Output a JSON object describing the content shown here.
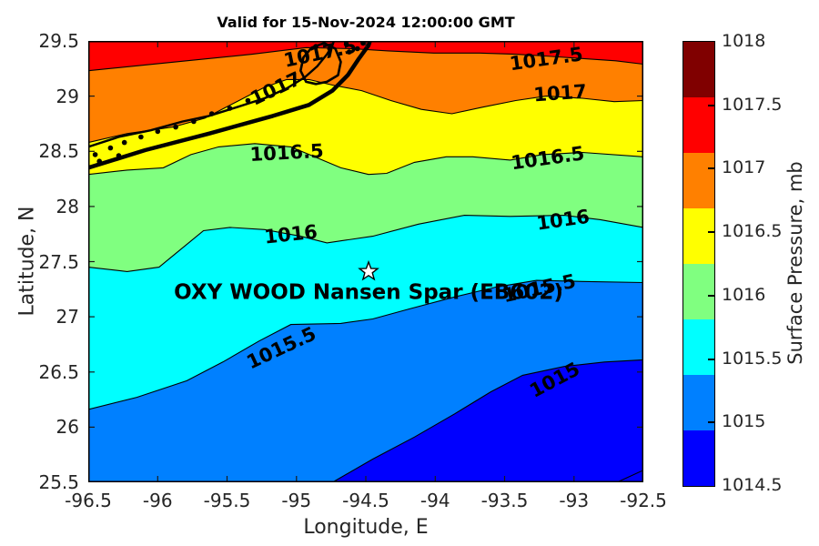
{
  "title": "Valid for 15-Nov-2024 12:00:00 GMT",
  "axes": {
    "xlabel": "Longitude, E",
    "ylabel": "Latitude, N",
    "xticks": [
      "-96.5",
      "-96",
      "-95.5",
      "-95",
      "-94.5",
      "-94",
      "-93.5",
      "-93",
      "-92.5"
    ],
    "yticks": [
      "29.5",
      "29",
      "28.5",
      "28",
      "27.5",
      "27",
      "26.5",
      "26",
      "25.5"
    ]
  },
  "colorbar": {
    "label": "Surface Pressure, mb",
    "ticks": [
      "1018",
      "1017.5",
      "1017",
      "1016.5",
      "1016",
      "1015.5",
      "1015",
      "1014.5"
    ],
    "band_colors_top_to_bottom": [
      "#800000",
      "#ff0000",
      "#ff8000",
      "#ffff00",
      "#80ff80",
      "#00ffff",
      "#0080ff",
      "#0000ff"
    ]
  },
  "chart_data": {
    "type": "heatmap",
    "subtype": "filled_contour_map",
    "title": "Valid for 15-Nov-2024 12:00:00 GMT",
    "xlabel": "Longitude, E",
    "ylabel": "Latitude, N",
    "xlim": [
      -96.5,
      -92.5
    ],
    "ylim": [
      25.5,
      29.5
    ],
    "xticks": [
      -96.5,
      -96,
      -95.5,
      -95,
      -94.5,
      -94,
      -93.5,
      -93,
      -92.5
    ],
    "yticks": [
      25.5,
      26,
      26.5,
      27,
      27.5,
      28,
      28.5,
      29,
      29.5
    ],
    "grid": false,
    "base_fill": "#0000ff",
    "colorbar": {
      "label": "Surface Pressure, mb",
      "min": 1014.5,
      "max": 1018,
      "tick_step": 0.5,
      "band_colors_low_to_high": [
        "#0000ff",
        "#0080ff",
        "#00ffff",
        "#80ff80",
        "#ffff00",
        "#ff8000",
        "#ff0000",
        "#800000"
      ]
    },
    "contour_levels_mb": [
      1014.5,
      1015,
      1015.5,
      1016,
      1016.5,
      1017,
      1017.5
    ],
    "contours": [
      {
        "level": 1015,
        "fill_above": "#0080ff",
        "points": [
          [
            -94.74,
            25.5
          ],
          [
            -94.45,
            25.71
          ],
          [
            -94.15,
            25.91
          ],
          [
            -93.86,
            26.12
          ],
          [
            -93.6,
            26.32
          ],
          [
            -93.37,
            26.47
          ],
          [
            -93.07,
            26.55
          ],
          [
            -92.78,
            26.59
          ],
          [
            -92.5,
            26.61
          ]
        ]
      },
      {
        "level": 1015.5,
        "fill_above": "#00ffff",
        "points": [
          [
            -96.5,
            26.16
          ],
          [
            -96.15,
            26.27
          ],
          [
            -95.79,
            26.42
          ],
          [
            -95.53,
            26.59
          ],
          [
            -95.27,
            26.78
          ],
          [
            -95.04,
            26.93
          ],
          [
            -94.68,
            26.94
          ],
          [
            -94.45,
            26.98
          ],
          [
            -94.19,
            27.07
          ],
          [
            -93.86,
            27.18
          ],
          [
            -93.56,
            27.27
          ],
          [
            -93.27,
            27.33
          ],
          [
            -92.94,
            27.32
          ],
          [
            -92.5,
            27.31
          ]
        ]
      },
      {
        "level": 1016,
        "fill_above": "#80ff80",
        "points": [
          [
            -96.5,
            27.45
          ],
          [
            -96.22,
            27.41
          ],
          [
            -95.99,
            27.45
          ],
          [
            -95.67,
            27.78
          ],
          [
            -95.48,
            27.81
          ],
          [
            -95.23,
            27.79
          ],
          [
            -94.97,
            27.73
          ],
          [
            -94.78,
            27.67
          ],
          [
            -94.45,
            27.73
          ],
          [
            -94.12,
            27.84
          ],
          [
            -93.79,
            27.92
          ],
          [
            -93.46,
            27.91
          ],
          [
            -93.07,
            27.92
          ],
          [
            -92.81,
            27.88
          ],
          [
            -92.5,
            27.81
          ]
        ]
      },
      {
        "level": 1016.5,
        "fill_above": "#ffff00",
        "points": [
          [
            -96.5,
            28.29
          ],
          [
            -96.22,
            28.33
          ],
          [
            -95.96,
            28.35
          ],
          [
            -95.76,
            28.47
          ],
          [
            -95.56,
            28.54
          ],
          [
            -95.3,
            28.57
          ],
          [
            -95.04,
            28.54
          ],
          [
            -94.87,
            28.45
          ],
          [
            -94.68,
            28.35
          ],
          [
            -94.48,
            28.29
          ],
          [
            -94.35,
            28.3
          ],
          [
            -94.15,
            28.4
          ],
          [
            -93.92,
            28.45
          ],
          [
            -93.73,
            28.45
          ],
          [
            -93.46,
            28.42
          ],
          [
            -93.23,
            28.47
          ],
          [
            -92.94,
            28.49
          ],
          [
            -92.5,
            28.45
          ]
        ]
      },
      {
        "level": 1017,
        "fill_above": "#ff8000",
        "points": [
          [
            -96.5,
            28.58
          ],
          [
            -96.22,
            28.66
          ],
          [
            -95.89,
            28.72
          ],
          [
            -95.66,
            28.8
          ],
          [
            -95.43,
            28.95
          ],
          [
            -95.23,
            29.08
          ],
          [
            -95.07,
            29.15
          ],
          [
            -94.91,
            29.15
          ],
          [
            -94.74,
            29.1
          ],
          [
            -94.53,
            29.05
          ],
          [
            -94.32,
            28.96
          ],
          [
            -94.1,
            28.88
          ],
          [
            -93.88,
            28.84
          ],
          [
            -93.66,
            28.9
          ],
          [
            -93.42,
            28.96
          ],
          [
            -93.2,
            29.0
          ],
          [
            -92.94,
            28.98
          ],
          [
            -92.71,
            28.95
          ],
          [
            -92.5,
            28.96
          ]
        ]
      },
      {
        "level": 1017.5,
        "fill_above": "#ff0000",
        "points": [
          [
            -96.5,
            29.23
          ],
          [
            -96.11,
            29.28
          ],
          [
            -95.71,
            29.33
          ],
          [
            -95.32,
            29.38
          ],
          [
            -94.93,
            29.44
          ],
          [
            -94.6,
            29.43
          ],
          [
            -94.34,
            29.41
          ],
          [
            -94.01,
            29.39
          ],
          [
            -93.68,
            29.39
          ],
          [
            -93.42,
            29.38
          ],
          [
            -93.16,
            29.36
          ],
          [
            -92.93,
            29.34
          ],
          [
            -92.7,
            29.32
          ],
          [
            -92.5,
            29.29
          ]
        ]
      }
    ],
    "extra_contour_segment": {
      "level": 1014.5,
      "points": [
        [
          -92.69,
          25.5
        ],
        [
          -92.5,
          25.61
        ]
      ]
    },
    "contour_labels": [
      {
        "text": "1017.5",
        "lon": -94.83,
        "lat": 29.39,
        "rot": -12
      },
      {
        "text": "1017.5",
        "lon": -93.2,
        "lat": 29.34,
        "rot": -8
      },
      {
        "text": "1017",
        "lon": -95.15,
        "lat": 29.07,
        "rot": -25
      },
      {
        "text": "1017",
        "lon": -93.1,
        "lat": 29.03,
        "rot": -4
      },
      {
        "text": "1016.5",
        "lon": -95.07,
        "lat": 28.49,
        "rot": -3
      },
      {
        "text": "1016.5",
        "lon": -93.19,
        "lat": 28.44,
        "rot": -8
      },
      {
        "text": "1016",
        "lon": -95.04,
        "lat": 27.75,
        "rot": -6
      },
      {
        "text": "1016",
        "lon": -93.08,
        "lat": 27.88,
        "rot": -8
      },
      {
        "text": "1015.5",
        "lon": -95.11,
        "lat": 26.72,
        "rot": -25
      },
      {
        "text": "1015.5",
        "lon": -93.25,
        "lat": 27.26,
        "rot": -12
      },
      {
        "text": "1015",
        "lon": -93.14,
        "lat": 26.43,
        "rot": -28
      }
    ],
    "station": {
      "label": "OXY WOOD Nansen Spar (EB602)",
      "lon": -94.48,
      "lat": 27.41,
      "marker": "pentagram",
      "marker_face": "#ffffff",
      "marker_edge": "#000000"
    },
    "coastline": {
      "color": "#000000",
      "barrier": [
        [
          -96.5,
          28.35
        ],
        [
          -96.09,
          28.51
        ],
        [
          -95.63,
          28.66
        ],
        [
          -95.17,
          28.82
        ],
        [
          -94.91,
          28.92
        ],
        [
          -94.74,
          29.05
        ],
        [
          -94.63,
          29.19
        ],
        [
          -94.55,
          29.34
        ],
        [
          -94.48,
          29.46
        ],
        [
          -94.47,
          29.5
        ]
      ],
      "mainland": [
        [
          -96.5,
          28.54
        ],
        [
          -96.28,
          28.63
        ],
        [
          -96.05,
          28.69
        ],
        [
          -95.82,
          28.77
        ],
        [
          -95.63,
          28.82
        ],
        [
          -95.43,
          28.9
        ],
        [
          -95.23,
          28.98
        ],
        [
          -95.07,
          29.07
        ],
        [
          -94.94,
          29.17
        ],
        [
          -94.85,
          29.27
        ],
        [
          -94.78,
          29.38
        ],
        [
          -94.74,
          29.46
        ],
        [
          -94.73,
          29.5
        ]
      ],
      "bay": [
        [
          -94.93,
          29.13
        ],
        [
          -94.97,
          29.23
        ],
        [
          -94.95,
          29.35
        ],
        [
          -94.89,
          29.44
        ],
        [
          -94.8,
          29.48
        ],
        [
          -94.72,
          29.43
        ],
        [
          -94.68,
          29.31
        ],
        [
          -94.7,
          29.19
        ],
        [
          -94.78,
          29.13
        ],
        [
          -94.86,
          29.11
        ]
      ],
      "islets": [
        [
          -96.45,
          28.47
        ],
        [
          -96.34,
          28.53
        ],
        [
          -96.24,
          28.58
        ],
        [
          -96.12,
          28.63
        ],
        [
          -96.0,
          28.68
        ],
        [
          -96.42,
          28.41
        ],
        [
          -96.28,
          28.46
        ],
        [
          -95.87,
          28.72
        ],
        [
          -95.74,
          28.77
        ],
        [
          -95.61,
          28.84
        ],
        [
          -95.48,
          28.89
        ],
        [
          -95.35,
          28.96
        ],
        [
          -94.86,
          29.45
        ],
        [
          -94.76,
          29.43
        ],
        [
          -94.64,
          29.47
        ],
        [
          -94.56,
          29.43
        ],
        [
          -94.62,
          29.4
        ],
        [
          -94.52,
          29.48
        ]
      ]
    }
  }
}
